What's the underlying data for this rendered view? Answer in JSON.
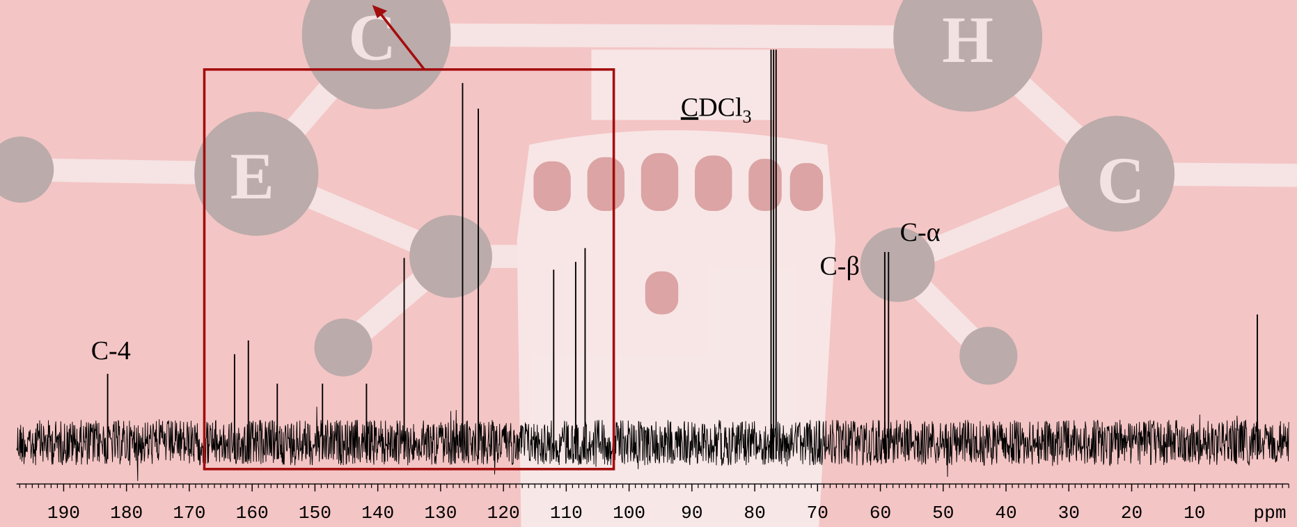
{
  "chart_data": {
    "type": "spectrum",
    "watermark": [
      "C",
      "E",
      "H",
      "C"
    ],
    "x": [
      183.0,
      162.8,
      160.6,
      156.0,
      148.8,
      141.8,
      135.8,
      126.5,
      124.0,
      112.0,
      108.5,
      107.0,
      77.4,
      77.0,
      76.6,
      59.3,
      58.7,
      0.0
    ],
    "values": [
      17.5,
      22.5,
      26,
      15,
      15,
      15,
      47,
      91.5,
      85,
      44,
      46,
      49.5,
      100,
      100,
      100,
      48.5,
      48.5,
      32.6
    ],
    "color": "#000000",
    "xlim": [
      197.5,
      -5
    ],
    "ylim": [
      0,
      100
    ],
    "xticks": [
      190,
      180,
      170,
      160,
      150,
      140,
      130,
      120,
      110,
      100,
      90,
      80,
      70,
      60,
      50,
      40,
      30,
      20,
      10
    ],
    "xlabel": "ppm",
    "annotations": [
      "C-4",
      "C-β",
      "C-α"
    ],
    "solvent_label": [
      "C",
      "DCl",
      "3"
    ]
  }
}
